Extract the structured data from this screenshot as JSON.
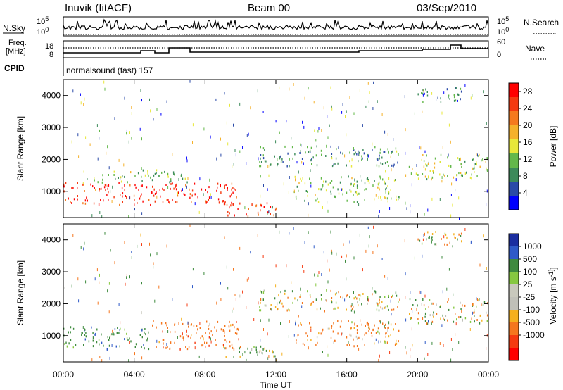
{
  "header": {
    "station": "Inuvik (fitACF)",
    "beam": "Beam 00",
    "date": "03/Sep/2010"
  },
  "top_strip": {
    "left_labels": {
      "nsky": "N.Sky",
      "freq_line1": "Freq.",
      "freq_line2": "[MHz]",
      "cpid": "CPID"
    },
    "right_labels": {
      "nsearch": "N.Search",
      "nave": "Nave"
    },
    "nsky_ticks": [
      "10^5",
      "10^0"
    ],
    "nsearch_ticks": [
      "10^5",
      "10^0"
    ],
    "freq_ticks": [
      "18",
      "8"
    ],
    "nave_ticks": [
      "60",
      "0"
    ],
    "cpid_text": "normalsound (fast) 157"
  },
  "colors": {
    "power_scale": [
      "#0000ff",
      "#2a4aa8",
      "#3c8a5a",
      "#63b84a",
      "#e8e83a",
      "#f5b12a",
      "#f57a1e",
      "#f53a10",
      "#ff0000"
    ],
    "velocity_scale": [
      "#1b2ea0",
      "#2f5ac8",
      "#3e8a3e",
      "#86c840",
      "#c8c8bc",
      "#c0c0b8",
      "#f5b01e",
      "#f5761e",
      "#f53a10",
      "#ff0000"
    ]
  },
  "chart_data": [
    {
      "type": "heatmap",
      "title": "Power",
      "xlabel": "Time UT",
      "ylabel": "Slant Range [km]",
      "xlim": [
        "00:00",
        "24:00"
      ],
      "ylim": [
        180,
        4500
      ],
      "x_ticks": [
        "00:00",
        "04:00",
        "08:00",
        "12:00",
        "16:00",
        "20:00",
        "00:00"
      ],
      "y_ticks": [
        "1000",
        "2000",
        "3000",
        "4000"
      ],
      "colorbar": {
        "label": "Power [dB]",
        "ticks": [
          "4",
          "8",
          "12",
          "16",
          "20",
          "24",
          "28"
        ],
        "range": [
          0,
          30
        ]
      },
      "regions": [
        {
          "t0": 0.0,
          "t1": 10.0,
          "r0": 600,
          "r1": 1300,
          "level": 27
        },
        {
          "t0": 1.0,
          "t1": 7.0,
          "r0": 1300,
          "r1": 1700,
          "level": 12
        },
        {
          "t0": 9.0,
          "t1": 12.0,
          "r0": 250,
          "r1": 700,
          "level": 26
        },
        {
          "t0": 11.0,
          "t1": 19.0,
          "r0": 1800,
          "r1": 2450,
          "level": 9
        },
        {
          "t0": 13.0,
          "t1": 19.0,
          "r0": 700,
          "r1": 1500,
          "level": 12
        },
        {
          "t0": 19.5,
          "t1": 24.0,
          "r0": 1400,
          "r1": 2200,
          "level": 14
        },
        {
          "t0": 20.0,
          "t1": 22.5,
          "r0": 3800,
          "r1": 4300,
          "level": 7
        }
      ]
    },
    {
      "type": "heatmap",
      "title": "Velocity",
      "xlabel": "Time UT",
      "ylabel": "Slant Range [km]",
      "xlim": [
        "00:00",
        "24:00"
      ],
      "ylim": [
        180,
        4500
      ],
      "x_ticks": [
        "00:00",
        "04:00",
        "08:00",
        "12:00",
        "16:00",
        "20:00",
        "00:00"
      ],
      "y_ticks": [
        "1000",
        "2000",
        "3000",
        "4000"
      ],
      "colorbar": {
        "label": "Velocity [m s^-1]",
        "ticks": [
          "1000",
          "500",
          "100",
          "25",
          "-25",
          "-100",
          "-500",
          "-1000"
        ],
        "range": [
          -1000,
          1000
        ]
      },
      "regions": [
        {
          "t0": 0.0,
          "t1": 5.0,
          "r0": 600,
          "r1": 1300,
          "level": 300
        },
        {
          "t0": 5.0,
          "t1": 10.0,
          "r0": 600,
          "r1": 1500,
          "level": -300
        },
        {
          "t0": 9.0,
          "t1": 12.0,
          "r0": 250,
          "r1": 700,
          "level": 150
        },
        {
          "t0": 11.0,
          "t1": 19.0,
          "r0": 1800,
          "r1": 2450,
          "level": 0
        },
        {
          "t0": 13.0,
          "t1": 19.0,
          "r0": 700,
          "r1": 1500,
          "level": -200
        },
        {
          "t0": 19.5,
          "t1": 24.0,
          "r0": 1400,
          "r1": 2200,
          "level": 0
        },
        {
          "t0": 20.0,
          "t1": 22.5,
          "r0": 3800,
          "r1": 4300,
          "level": 0
        }
      ]
    }
  ]
}
